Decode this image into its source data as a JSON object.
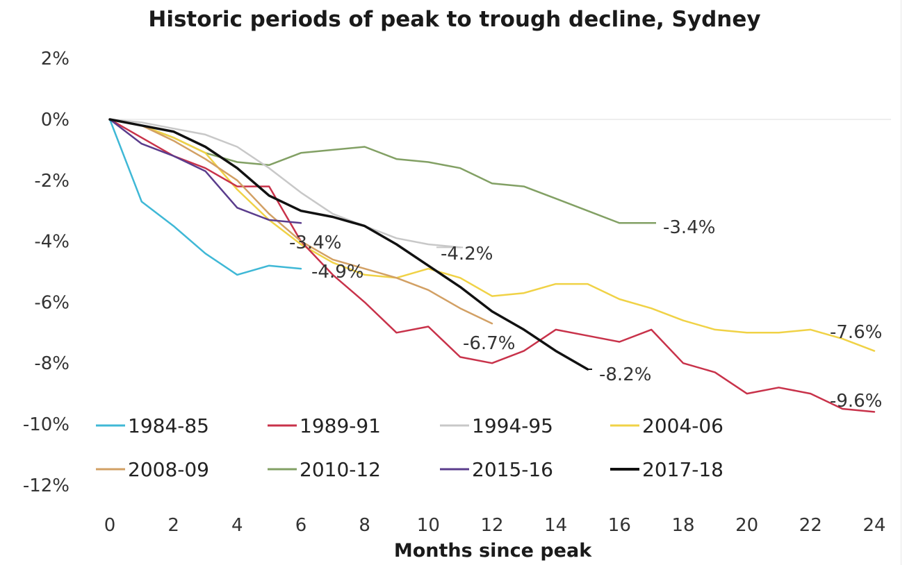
{
  "chart_data": {
    "type": "line",
    "title": "Historic periods of peak to trough decline, Sydney",
    "xlabel": "Months since peak",
    "ylabel": "",
    "xlim": [
      0,
      24
    ],
    "ylim": [
      -12,
      2
    ],
    "x_ticks": [
      "0",
      "2",
      "4",
      "6",
      "8",
      "10",
      "12",
      "14",
      "16",
      "18",
      "20",
      "22",
      "24"
    ],
    "y_ticks": [
      "2%",
      "0%",
      "-2%",
      "-4%",
      "-6%",
      "-8%",
      "-10%",
      "-12%"
    ],
    "grid": false,
    "legend_position": "bottom-left",
    "series": [
      {
        "name": "1984-85",
        "color": "#3fb8d6",
        "x": [
          0,
          1,
          2,
          3,
          4,
          5,
          6
        ],
        "values": [
          0,
          -2.7,
          -3.5,
          -4.4,
          -5.1,
          -4.8,
          -4.9
        ],
        "end_label": "-4.9%"
      },
      {
        "name": "1989-91",
        "color": "#c8324a",
        "x": [
          0,
          1,
          2,
          3,
          4,
          5,
          6,
          7,
          8,
          9,
          10,
          11,
          12,
          13,
          14,
          15,
          16,
          17,
          18,
          19,
          20,
          21,
          22,
          23,
          24
        ],
        "values": [
          0,
          -0.6,
          -1.2,
          -1.6,
          -2.2,
          -2.2,
          -4.0,
          -5.1,
          -6.0,
          -7.0,
          -6.8,
          -7.8,
          -8.0,
          -7.6,
          -6.9,
          -7.1,
          -7.3,
          -6.9,
          -8.0,
          -8.3,
          -9.0,
          -8.8,
          -9.0,
          -9.5,
          -9.6
        ],
        "end_label": "-9.6%"
      },
      {
        "name": "1994-95",
        "color": "#c8c8c8",
        "x": [
          0,
          1,
          2,
          3,
          4,
          5,
          6,
          7,
          8,
          9,
          10,
          11
        ],
        "values": [
          0,
          -0.1,
          -0.3,
          -0.5,
          -0.9,
          -1.6,
          -2.4,
          -3.1,
          -3.5,
          -3.9,
          -4.1,
          -4.2
        ],
        "end_label": "-4.2%"
      },
      {
        "name": "2004-06",
        "color": "#f0d246",
        "x": [
          0,
          1,
          2,
          3,
          4,
          5,
          6,
          7,
          8,
          9,
          10,
          11,
          12,
          13,
          14,
          15,
          16,
          17,
          18,
          19,
          20,
          21,
          22,
          23,
          24
        ],
        "values": [
          0,
          -0.2,
          -0.6,
          -1.1,
          -2.3,
          -3.3,
          -4.1,
          -4.7,
          -5.1,
          -5.2,
          -4.9,
          -5.2,
          -5.8,
          -5.7,
          -5.4,
          -5.4,
          -5.9,
          -6.2,
          -6.6,
          -6.9,
          -7.0,
          -7.0,
          -6.9,
          -7.2,
          -7.6
        ],
        "end_label": "-7.6%"
      },
      {
        "name": "2008-09",
        "color": "#d2a064",
        "x": [
          0,
          1,
          2,
          3,
          4,
          5,
          6,
          7,
          8,
          9,
          10,
          11,
          12
        ],
        "values": [
          0,
          -0.2,
          -0.7,
          -1.3,
          -2.0,
          -3.1,
          -4.0,
          -4.6,
          -4.9,
          -5.2,
          -5.6,
          -6.2,
          -6.7
        ],
        "end_label": "-6.7%"
      },
      {
        "name": "2010-12",
        "color": "#82a064",
        "x": [
          0,
          1,
          2,
          3,
          4,
          5,
          6,
          7,
          8,
          9,
          10,
          11,
          12,
          13,
          14,
          15,
          16,
          17
        ],
        "values": [
          0,
          -0.2,
          -0.6,
          -1.1,
          -1.4,
          -1.5,
          -1.1,
          -1.0,
          -0.9,
          -1.3,
          -1.4,
          -1.6,
          -2.1,
          -2.2,
          -2.6,
          -3.0,
          -3.4,
          -3.4
        ],
        "end_label": "-3.4%"
      },
      {
        "name": "2015-16",
        "color": "#5a3c8c",
        "x": [
          0,
          1,
          2,
          3,
          4,
          5,
          6
        ],
        "values": [
          0,
          -0.8,
          -1.2,
          -1.7,
          -2.9,
          -3.3,
          -3.4
        ],
        "end_label": "-3.4%"
      },
      {
        "name": "2017-18",
        "color": "#111111",
        "x": [
          0,
          1,
          2,
          3,
          4,
          5,
          6,
          7,
          8,
          9,
          10,
          11,
          12,
          13,
          14,
          15
        ],
        "values": [
          0,
          -0.2,
          -0.4,
          -0.9,
          -1.6,
          -2.5,
          -3.0,
          -3.2,
          -3.5,
          -4.1,
          -4.8,
          -5.5,
          -6.3,
          -6.9,
          -7.6,
          -8.2
        ],
        "end_label": "-8.2%"
      }
    ]
  }
}
